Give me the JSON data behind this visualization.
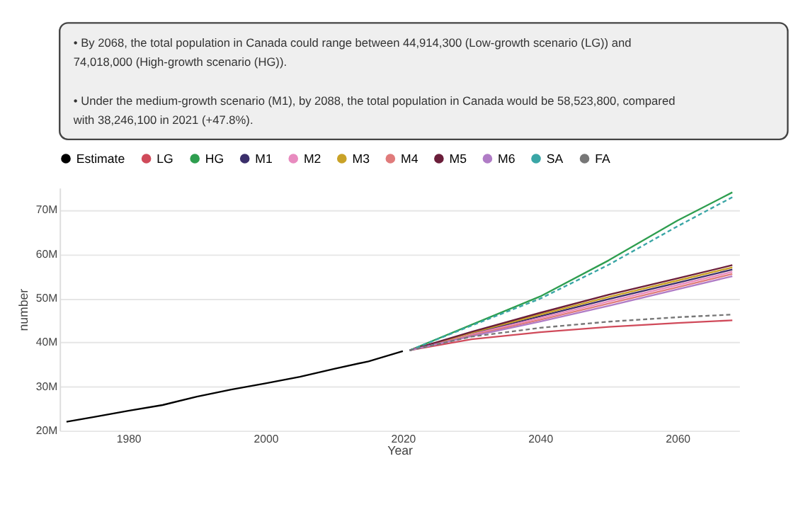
{
  "chart_data": {
    "type": "line",
    "annotations": [
      "• By 2068, the total population in Canada could range between 44,914,300 (Low-growth scenario (LG)) and 74,018,000 (High-growth scenario (HG)).",
      "• Under the medium-growth scenario (M1), by 2088, the total population in Canada would be 58,523,800, compared with 38,246,100 in 2021 (+47.8%)."
    ],
    "xlabel": "Year",
    "ylabel": "number",
    "series": [
      {
        "name": "Estimate",
        "color": "#000000",
        "x": [
          1971,
          1975,
          1980,
          1985,
          1990,
          1995,
          2000,
          2005,
          2010,
          2015,
          2020
        ],
        "values": [
          22.0,
          23.1,
          24.5,
          25.8,
          27.7,
          29.3,
          30.7,
          32.2,
          34.0,
          35.7,
          38.0
        ]
      },
      {
        "name": "LG",
        "color": "#d04a5a",
        "x": [
          2021,
          2030,
          2040,
          2050,
          2060,
          2068
        ],
        "values": [
          38.2,
          40.7,
          42.3,
          43.5,
          44.4,
          45.0
        ]
      },
      {
        "name": "HG",
        "color": "#2e9e4f",
        "x": [
          2021,
          2030,
          2040,
          2050,
          2060,
          2068
        ],
        "values": [
          38.2,
          44.0,
          50.4,
          58.6,
          67.6,
          74.0
        ]
      },
      {
        "name": "M1",
        "color": "#3b2f6b",
        "x": [
          2021,
          2030,
          2040,
          2050,
          2060,
          2068
        ],
        "values": [
          38.2,
          42.0,
          45.9,
          49.8,
          53.5,
          56.5
        ]
      },
      {
        "name": "M2",
        "color": "#e88bbf",
        "x": [
          2021,
          2030,
          2040,
          2050,
          2060,
          2068
        ],
        "values": [
          38.2,
          41.8,
          45.5,
          49.3,
          53.0,
          56.0
        ]
      },
      {
        "name": "M3",
        "color": "#c9a227",
        "x": [
          2021,
          2030,
          2040,
          2050,
          2060,
          2068
        ],
        "values": [
          38.2,
          42.2,
          46.3,
          50.3,
          54.0,
          57.0
        ]
      },
      {
        "name": "M4",
        "color": "#e07b7b",
        "x": [
          2021,
          2030,
          2040,
          2050,
          2060,
          2068
        ],
        "values": [
          38.2,
          41.6,
          45.1,
          48.8,
          52.5,
          55.5
        ]
      },
      {
        "name": "M5",
        "color": "#6b1e3a",
        "x": [
          2021,
          2030,
          2040,
          2050,
          2060,
          2068
        ],
        "values": [
          38.2,
          42.4,
          46.7,
          50.8,
          54.5,
          57.5
        ]
      },
      {
        "name": "M6",
        "color": "#b07cc6",
        "x": [
          2021,
          2030,
          2040,
          2050,
          2060,
          2068
        ],
        "values": [
          38.2,
          41.4,
          44.7,
          48.3,
          52.0,
          55.0
        ]
      },
      {
        "name": "SA",
        "color": "#3aa6a6",
        "line_style": "dashed",
        "x": [
          2021,
          2030,
          2040,
          2050,
          2060,
          2068
        ],
        "values": [
          38.2,
          43.8,
          49.9,
          57.6,
          66.3,
          72.9
        ]
      },
      {
        "name": "FA",
        "color": "#777777",
        "line_style": "dashed",
        "x": [
          2021,
          2030,
          2040,
          2050,
          2060,
          2068
        ],
        "values": [
          38.2,
          41.3,
          43.3,
          44.7,
          45.7,
          46.3
        ]
      }
    ],
    "xlim": [
      1970,
      2069
    ],
    "xticks": [
      1980,
      2000,
      2020,
      2040,
      2060
    ],
    "ylim": [
      20,
      75
    ],
    "yticks": [
      {
        "value": 20,
        "label": "20M"
      },
      {
        "value": 30,
        "label": "30M"
      },
      {
        "value": 40,
        "label": "40M"
      },
      {
        "value": 50,
        "label": "50M"
      },
      {
        "value": 60,
        "label": "60M"
      },
      {
        "value": 70,
        "label": "70M"
      }
    ],
    "grid": "y",
    "legend": "top left",
    "marker": "none"
  }
}
